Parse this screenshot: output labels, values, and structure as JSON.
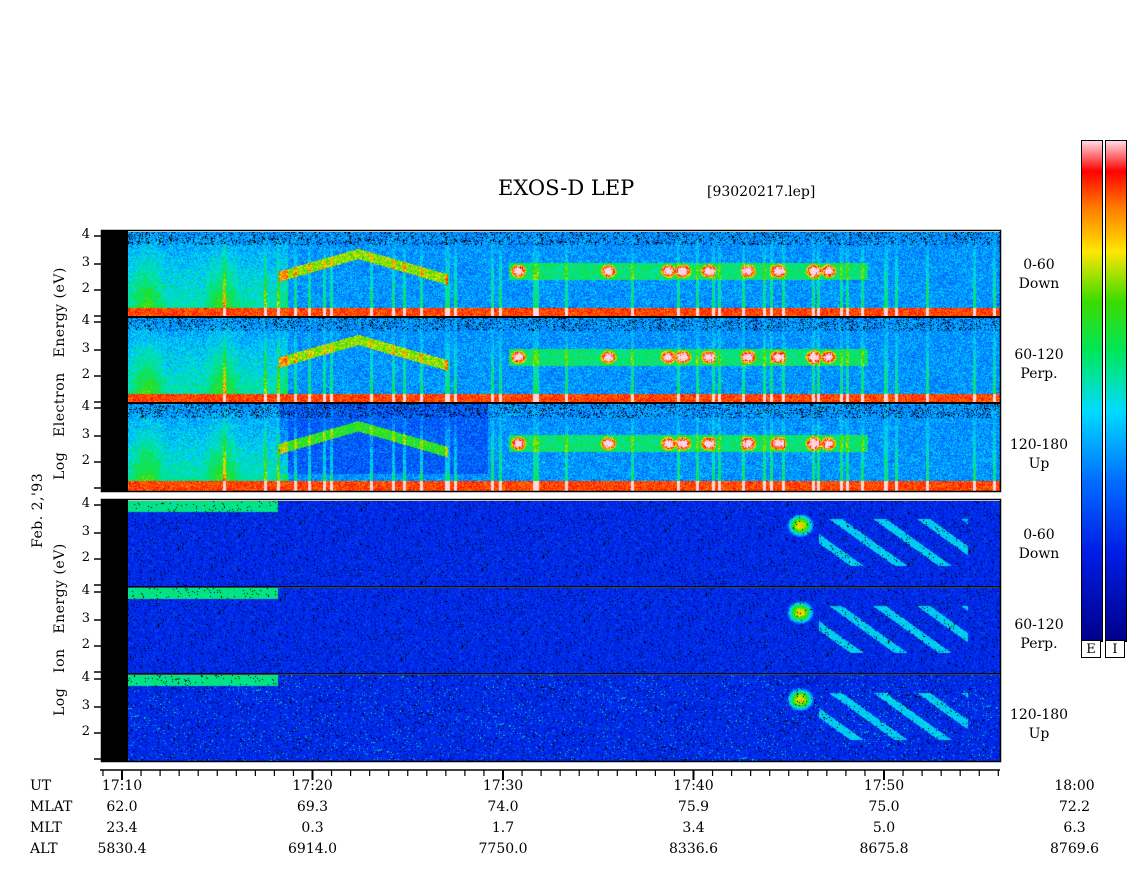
{
  "chart_data": {
    "type": "heatmap",
    "title": "EXOS-D LEP",
    "file": "[93020217.lep]",
    "y_axis_side_label": "Feb. 2,'93",
    "panel_groups": [
      {
        "name": "Electron",
        "axis_label": [
          "Log",
          "Electron",
          "Energy",
          "(eV)"
        ],
        "ytick_labels": [
          "4",
          "3",
          "2"
        ],
        "channels": [
          {
            "label_line1": "0-60",
            "label_line2": "Down"
          },
          {
            "label_line1": "60-120",
            "label_line2": "Perp."
          },
          {
            "label_line1": "120-180",
            "label_line2": "Up"
          }
        ]
      },
      {
        "name": "Ion",
        "axis_label": [
          "Log",
          "Ion",
          "Energy",
          "(eV)"
        ],
        "ytick_labels": [
          "4",
          "3",
          "2"
        ],
        "channels": [
          {
            "label_line1": "0-60",
            "label_line2": "Down"
          },
          {
            "label_line1": "60-120",
            "label_line2": "Perp."
          },
          {
            "label_line1": "120-180",
            "label_line2": "Up"
          }
        ]
      }
    ],
    "colorbar_labels": [
      "E",
      "I"
    ],
    "x_rows": [
      {
        "label": "UT",
        "values": [
          "17:10",
          "17:20",
          "17:30",
          "17:40",
          "17:50",
          "18:00"
        ]
      },
      {
        "label": "MLAT",
        "values": [
          "62.0",
          "69.3",
          "74.0",
          "75.9",
          "75.0",
          "72.2"
        ]
      },
      {
        "label": "MLT",
        "values": [
          "23.4",
          "0.3",
          "1.7",
          "3.4",
          "5.0",
          "6.3"
        ]
      },
      {
        "label": "ALT",
        "values": [
          "5830.4",
          "6914.0",
          "7750.0",
          "8336.6",
          "8675.8",
          "8769.6"
        ]
      }
    ]
  }
}
